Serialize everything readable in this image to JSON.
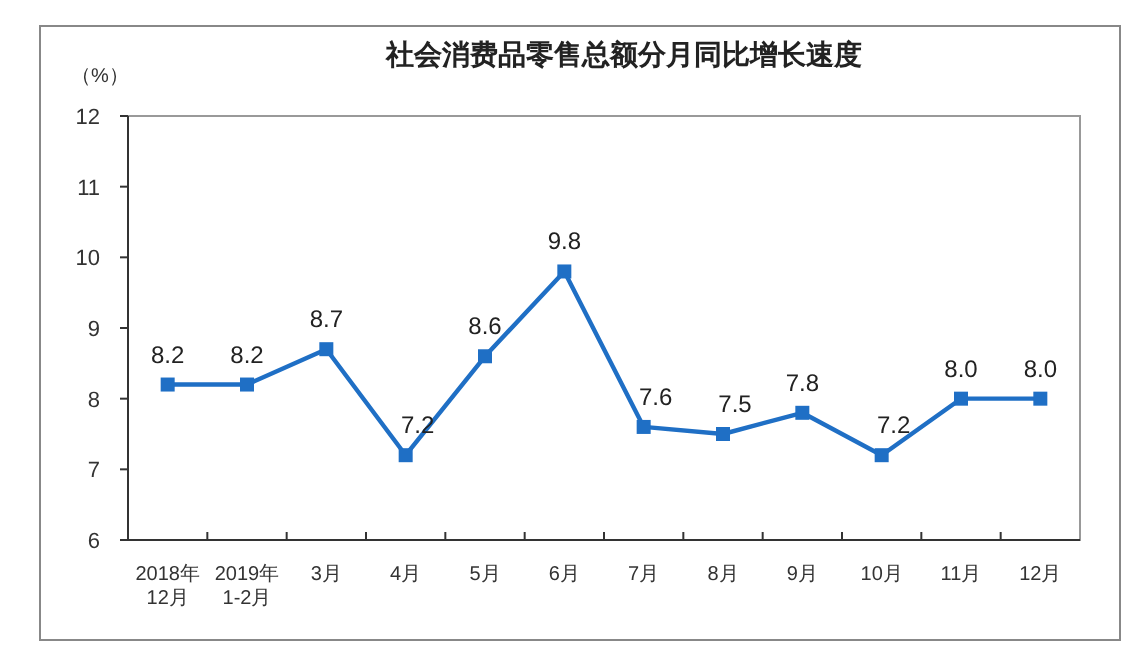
{
  "chart_data": {
    "type": "line",
    "title": "社会消费品零售总额分月同比增长速度",
    "ylabel": "（%）",
    "categories": [
      "2018年\n12月",
      "2019年\n1-2月",
      "3月",
      "4月",
      "5月",
      "6月",
      "7月",
      "8月",
      "9月",
      "10月",
      "11月",
      "12月"
    ],
    "series": [
      {
        "color": "#1f6fc5",
        "values": [
          8.2,
          8.2,
          8.7,
          7.2,
          8.6,
          9.8,
          7.6,
          7.5,
          7.8,
          7.2,
          8.0,
          8.0
        ],
        "value_labels": [
          "8.2",
          "8.2",
          "8.7",
          "7.2",
          "8.6",
          "9.8",
          "7.6",
          "7.5",
          "7.8",
          "7.2",
          "8.0",
          "8.0"
        ]
      }
    ],
    "ylim": [
      6,
      12
    ],
    "yticks": [
      6,
      7,
      8,
      9,
      10,
      11,
      12
    ],
    "grid": false,
    "marker": "square",
    "line_style": "solid"
  }
}
